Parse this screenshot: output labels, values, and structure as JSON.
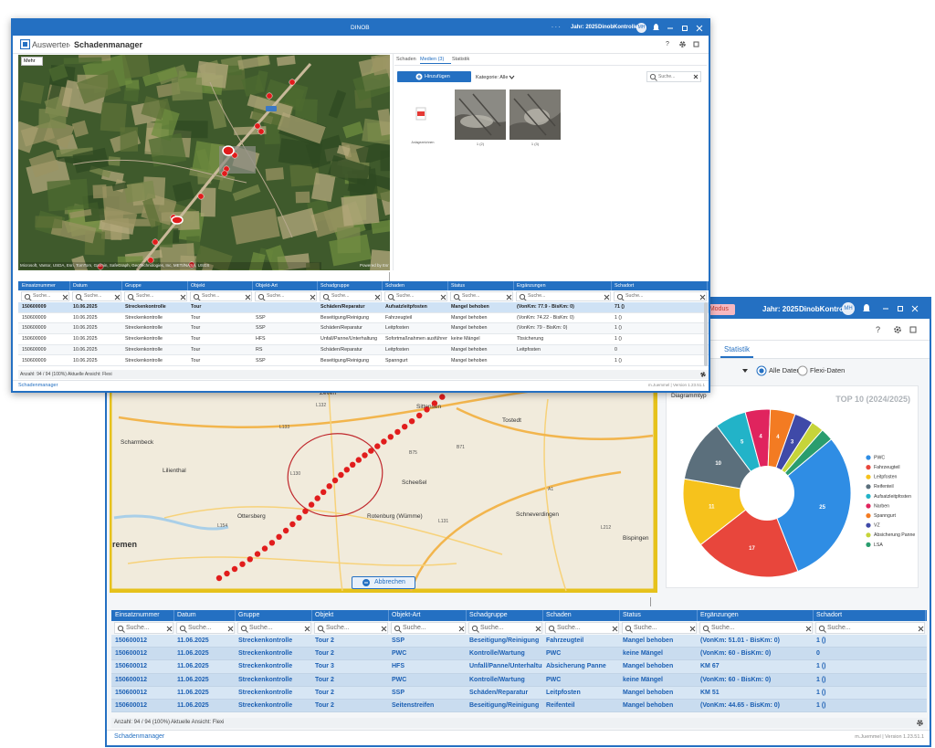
{
  "front_window": {
    "app_title": "DINOB",
    "dots": ". . .",
    "year": "Jahr: 2025",
    "user": "DinobKontrolle",
    "avatar": "MH",
    "breadcrumb_parent": "Auswerten",
    "breadcrumb_separator": "›",
    "breadcrumb_current": "Schadenmanager",
    "help": "?",
    "map": {
      "button": "Mehr",
      "attribution": "Microsoft, Vantor, USDA, Esri, TomTom, Garmin, SafeGraph, GeoTechnologies, Inc, METI/NASA, USGS",
      "powered_by": "Powered by Esri"
    },
    "tabs": [
      "Schaden",
      "Medien (3)",
      "Statistik"
    ],
    "media": {
      "add_button": "Hinzufügen",
      "category": "Kategorie: Alle",
      "search_placeholder": "Suche...",
      "items": [
        "Anlagezeichnen",
        "1 (2)",
        "1 (3)"
      ]
    },
    "table": {
      "columns": [
        "Einsatznummer",
        "Datum",
        "Gruppe",
        "Objekt",
        "Objekt-Art",
        "Schadgruppe",
        "Schaden",
        "Status",
        "Ergänzungen",
        "Schadort"
      ],
      "search_placeholder": "Suche...",
      "rows": [
        [
          "150600009",
          "10.06.2025",
          "Streckenkontrolle",
          "Tour",
          null,
          "Schäden/Reparatur",
          "Aufsatzleitpfosten",
          "Mangel behoben",
          "(VonKm: 77.9 - BisKm: 0)",
          "71 ()"
        ],
        [
          "150600009",
          "10.06.2025",
          "Streckenkontrolle",
          "Tour",
          "SSP",
          "Beseitigung/Reinigung",
          "Fahrzeugteil",
          "Mangel behoben",
          "(VonKm: 74.22 - BisKm: 0)",
          "1 ()"
        ],
        [
          "150600009",
          "10.06.2025",
          "Streckenkontrolle",
          "Tour",
          "SSP",
          "Schäden/Reparatur",
          "Leitpfosten",
          "Mangel behoben",
          "(VonKm: 79 - BisKm: 0)",
          "1 ()"
        ],
        [
          "150600009",
          "10.06.2025",
          "Streckenkontrolle",
          "Tour",
          "HFS",
          "Unfall/Panne/Unterhaltung",
          "Sofortmaßnahmen ausführen",
          "keine Mängel",
          "Tbsicherung",
          "1 ()"
        ],
        [
          "150600009",
          "10.06.2025",
          "Streckenkontrolle",
          "Tour",
          "RS",
          "Schäden/Reparatur",
          "Leitpfosten",
          "Mangel behoben",
          "Leitpfosten",
          "0"
        ],
        [
          "150600009",
          "10.06.2025",
          "Streckenkontrolle",
          "Tour",
          "SSP",
          "Beseitigung/Reinigung",
          "Spanngurt",
          "Mangel behoben",
          null,
          "1 ()"
        ]
      ]
    },
    "footer": {
      "count": "Anzahl: 94 / 94 (100%)",
      "view": "Aktuelle Ansicht: Flexi"
    },
    "status_bar": {
      "module": "Schadenmanager",
      "version": "m.Juemmel | Version 1.23.51.1"
    }
  },
  "back_window": {
    "badge": "e Modus",
    "year": "Jahr: 2025",
    "user": "DinobKontrolle",
    "avatar": "MH",
    "help": "?",
    "tab": "Statistik",
    "radio_all": "Alle Daten",
    "radio_flexi": "Flexi-Daten",
    "chart_type": "Diagrammtyp",
    "map": {
      "places": [
        "Zeven",
        "Sittensen",
        "Tostedt",
        "Scheeßel",
        "Rotenburg (Wümme)",
        "Ottersberg",
        "Schneverdingen",
        "Lilienthal",
        "Scharmbeck",
        "remen",
        "Bispingen"
      ],
      "roads": [
        "L132",
        "L133",
        "B71",
        "L131",
        "L130",
        "L154",
        "L212",
        "B75",
        "A1"
      ],
      "cancel_button": "Abbrechen"
    },
    "chart_data": {
      "type": "pie",
      "title": "TOP 10 (2024/2025)",
      "categories": [
        "PWC",
        "Fahrzeugteil",
        "Leitpfosten",
        "Reifenteil",
        "Aufsatzleitpfosten",
        "Narben",
        "Spanngurt",
        "VZ",
        "Absicherung Panne",
        "LSA"
      ],
      "values": [
        25,
        17,
        11,
        10,
        5,
        4,
        4,
        3,
        2,
        2
      ],
      "colors": [
        "#2f8de4",
        "#e8463c",
        "#f6c21c",
        "#5b6f7c",
        "#22b3c8",
        "#e0245e",
        "#f37b22",
        "#3f4aa8",
        "#c6d43a",
        "#2a9d6e"
      ]
    },
    "table": {
      "columns": [
        "Einsatznummer",
        "Datum",
        "Gruppe",
        "Objekt",
        "Objekt-Art",
        "Schadgruppe",
        "Schaden",
        "Status",
        "Ergänzungen",
        "Schadort"
      ],
      "search_placeholder": "Suche...",
      "rows": [
        [
          "150600012",
          "11.06.2025",
          "Streckenkontrolle",
          "Tour 2",
          "SSP",
          "Beseitigung/Reinigung",
          "Fahrzeugteil",
          "Mangel behoben",
          "(VonKm: 51.01 - BisKm: 0)",
          "1 ()"
        ],
        [
          "150600012",
          "11.06.2025",
          "Streckenkontrolle",
          "Tour 2",
          "PWC",
          "Kontrolle/Wartung",
          "PWC",
          "keine Mängel",
          "(VonKm: 60 - BisKm: 0)",
          "0"
        ],
        [
          "150600012",
          "11.06.2025",
          "Streckenkontrolle",
          "Tour 3",
          "HFS",
          "Unfall/Panne/Unterhaltung",
          "Absicherung Panne",
          "Mangel behoben",
          "KM 67",
          "1 ()"
        ],
        [
          "150600012",
          "11.06.2025",
          "Streckenkontrolle",
          "Tour 2",
          "PWC",
          "Kontrolle/Wartung",
          "PWC",
          "keine Mängel",
          "(VonKm: 60 - BisKm: 0)",
          "1 ()"
        ],
        [
          "150600012",
          "11.06.2025",
          "Streckenkontrolle",
          "Tour 2",
          "SSP",
          "Schäden/Reparatur",
          "Leitpfosten",
          "Mangel behoben",
          "KM 51",
          "1 ()"
        ],
        [
          "150600012",
          "11.06.2025",
          "Streckenkontrolle",
          "Tour 2",
          "Seitenstreifen",
          "Beseitigung/Reinigung",
          "Reifenteil",
          "Mangel behoben",
          "(VonKm: 44.65 - BisKm: 0)",
          "1 ()"
        ]
      ]
    },
    "footer": {
      "count": "Anzahl: 94 / 94 (100%)",
      "view": "Aktuelle Ansicht: Flexi"
    },
    "status_bar": {
      "module": "Schadenmanager",
      "version": "m.Juemmel | Version 1.23.51.1"
    }
  }
}
